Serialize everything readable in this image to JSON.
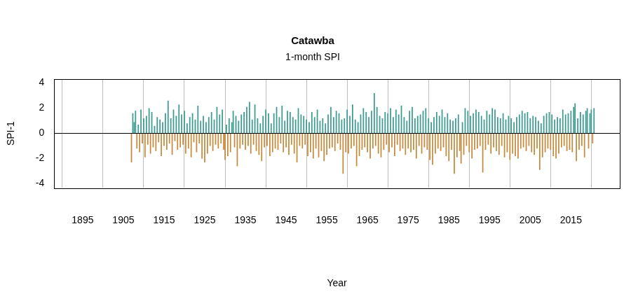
{
  "chart_data": {
    "type": "bar",
    "title": "Catawba",
    "subtitle": "1-month SPI",
    "x_label": "Year",
    "y_label": "SPI-1",
    "x": [
      1907,
      1907.33,
      1907.67,
      1908,
      1908.33,
      1908.67,
      1909,
      1909.33,
      1909.67,
      1910,
      1910.33,
      1910.67,
      1911,
      1911.33,
      1911.67,
      1912,
      1912.33,
      1912.67,
      1913,
      1913.33,
      1913.67,
      1914,
      1914.33,
      1914.67,
      1915,
      1915.33,
      1915.67,
      1916,
      1916.33,
      1916.67,
      1917,
      1917.33,
      1917.67,
      1918,
      1918.33,
      1918.67,
      1919,
      1919.33,
      1919.67,
      1920,
      1920.33,
      1920.67,
      1921,
      1921.33,
      1921.67,
      1922,
      1922.33,
      1922.67,
      1923,
      1923.33,
      1923.67,
      1924,
      1924.33,
      1924.67,
      1925,
      1925.33,
      1925.67,
      1926,
      1926.33,
      1926.67,
      1927,
      1927.33,
      1927.67,
      1928,
      1928.33,
      1928.67,
      1929,
      1929.33,
      1929.67,
      1930,
      1930.33,
      1930.67,
      1931,
      1931.33,
      1931.67,
      1932,
      1932.33,
      1932.67,
      1933,
      1933.33,
      1933.67,
      1934,
      1934.33,
      1934.67,
      1935,
      1935.33,
      1935.67,
      1936,
      1936.33,
      1936.67,
      1937,
      1937.33,
      1937.67,
      1938,
      1938.33,
      1938.67,
      1939,
      1939.33,
      1939.67,
      1940,
      1940.33,
      1940.67,
      1941,
      1941.33,
      1941.67,
      1942,
      1942.33,
      1942.67,
      1943,
      1943.33,
      1943.67,
      1944,
      1944.33,
      1944.67,
      1945,
      1945.33,
      1945.67,
      1946,
      1946.33,
      1946.67,
      1947,
      1947.33,
      1947.67,
      1948,
      1948.33,
      1948.67,
      1949,
      1949.33,
      1949.67,
      1950,
      1950.33,
      1950.67,
      1951,
      1951.33,
      1951.67,
      1952,
      1952.33,
      1952.67,
      1953,
      1953.33,
      1953.67,
      1954,
      1954.33,
      1954.67,
      1955,
      1955.33,
      1955.67,
      1956,
      1956.33,
      1956.67,
      1957,
      1957.33,
      1957.67,
      1958,
      1958.33,
      1958.67,
      1959,
      1959.33,
      1959.67,
      1960,
      1960.33,
      1960.67,
      1961,
      1961.33,
      1961.67,
      1962,
      1962.33,
      1962.67,
      1963,
      1963.33,
      1963.67,
      1964,
      1964.33,
      1964.67,
      1965,
      1965.33,
      1965.67,
      1966,
      1966.33,
      1966.67,
      1967,
      1967.33,
      1967.67,
      1968,
      1968.33,
      1968.67,
      1969,
      1969.33,
      1969.67,
      1970,
      1970.33,
      1970.67,
      1971,
      1971.33,
      1971.67,
      1972,
      1972.33,
      1972.67,
      1973,
      1973.33,
      1973.67,
      1974,
      1974.33,
      1974.67,
      1975,
      1975.33,
      1975.67,
      1976,
      1976.33,
      1976.67,
      1977,
      1977.33,
      1977.67,
      1978,
      1978.33,
      1978.67,
      1979,
      1979.33,
      1979.67,
      1980,
      1980.33,
      1980.67,
      1981,
      1981.33,
      1981.67,
      1982,
      1982.33,
      1982.67,
      1983,
      1983.33,
      1983.67,
      1984,
      1984.33,
      1984.67,
      1985,
      1985.33,
      1985.67,
      1986,
      1986.33,
      1986.67,
      1987,
      1987.33,
      1987.67,
      1988,
      1988.33,
      1988.67,
      1989,
      1989.33,
      1989.67,
      1990,
      1990.33,
      1990.67,
      1991,
      1991.33,
      1991.67,
      1992,
      1992.33,
      1992.67,
      1993,
      1993.33,
      1993.67,
      1994,
      1994.33,
      1994.67,
      1995,
      1995.33,
      1995.67,
      1996,
      1996.33,
      1996.67,
      1997,
      1997.33,
      1997.67,
      1998,
      1998.33,
      1998.67,
      1999,
      1999.33,
      1999.67,
      2000,
      2000.33,
      2000.67,
      2001,
      2001.33,
      2001.67,
      2002,
      2002.33,
      2002.67,
      2003,
      2003.33,
      2003.67,
      2004,
      2004.33,
      2004.67,
      2005,
      2005.33,
      2005.67,
      2006,
      2006.33,
      2006.67,
      2007,
      2007.33,
      2007.67,
      2008,
      2008.33,
      2008.67,
      2009,
      2009.33,
      2009.67,
      2010,
      2010.33,
      2010.67,
      2011,
      2011.33,
      2011.67,
      2012,
      2012.33,
      2012.67,
      2013,
      2013.33,
      2013.67,
      2014,
      2014.33,
      2014.67,
      2015,
      2015.33,
      2015.67,
      2016,
      2016.33,
      2016.67,
      2017,
      2017.33,
      2017.67,
      2018,
      2018.33,
      2018.67,
      2019,
      2019.33,
      2019.67,
      2020,
      2020.33,
      2020.67
    ],
    "series": [
      {
        "color": "#3a9a8f",
        "values": [
          null,
          1.6,
          0.9,
          1.8,
          null,
          0.7,
          null,
          1.9,
          null,
          1.2,
          null,
          1.4,
          null,
          2.0,
          null,
          1.7,
          null,
          0.6,
          null,
          1.3,
          null,
          1.1,
          null,
          0.9,
          null,
          1.6,
          null,
          2.6,
          null,
          1.2,
          null,
          1.9,
          null,
          1.4,
          null,
          2.3,
          null,
          1.5,
          null,
          1.8,
          null,
          0.8,
          null,
          1.3,
          null,
          1.6,
          null,
          1.1,
          null,
          2.2,
          null,
          1.0,
          null,
          1.4,
          null,
          0.9,
          null,
          1.3,
          null,
          1.7,
          null,
          1.1,
          null,
          2.1,
          null,
          1.5,
          null,
          1.9,
          null,
          null,
          0.7,
          null,
          1.2,
          null,
          0.9,
          1.8,
          null,
          1.4,
          null,
          1.0,
          null,
          1.5,
          null,
          1.7,
          null,
          2.1,
          null,
          2.5,
          null,
          1.1,
          null,
          2.3,
          null,
          1.2,
          null,
          0.8,
          null,
          1.4,
          null,
          1.9,
          null,
          1.6,
          null,
          0.8,
          null,
          1.6,
          null,
          2.1,
          null,
          1.3,
          null,
          2.2,
          null,
          1.0,
          null,
          1.8,
          null,
          1.7,
          null,
          1.3,
          null,
          1.1,
          null,
          2.0,
          null,
          1.5,
          null,
          1.4,
          null,
          1.1,
          null,
          0.9,
          null,
          1.7,
          null,
          1.3,
          null,
          1.9,
          null,
          1.0,
          null,
          1.2,
          null,
          0.8,
          null,
          1.5,
          null,
          2.1,
          null,
          1.3,
          null,
          1.8,
          null,
          1.6,
          null,
          1.1,
          null,
          1.2,
          null,
          1.9,
          null,
          1.4,
          null,
          2.3,
          null,
          1.1,
          null,
          0.9,
          null,
          1.5,
          null,
          2.0,
          null,
          1.7,
          null,
          1.3,
          null,
          1.8,
          null,
          3.2,
          null,
          2.1,
          null,
          1.4,
          null,
          1.2,
          null,
          1.7,
          null,
          1.6,
          null,
          2.0,
          null,
          1.3,
          null,
          1.9,
          null,
          1.5,
          null,
          2.2,
          null,
          1.3,
          null,
          1.0,
          null,
          1.8,
          null,
          2.1,
          null,
          1.2,
          null,
          1.4,
          null,
          1.5,
          null,
          1.8,
          null,
          2.0,
          null,
          1.2,
          null,
          0.9,
          null,
          1.3,
          null,
          1.7,
          null,
          1.4,
          null,
          1.9,
          null,
          1.3,
          null,
          1.6,
          null,
          1.1,
          null,
          1.0,
          null,
          1.2,
          null,
          1.5,
          null,
          null,
          0.9,
          null,
          2.0,
          null,
          1.8,
          null,
          1.4,
          null,
          1.6,
          null,
          1.9,
          null,
          1.7,
          null,
          1.4,
          null,
          1.1,
          null,
          1.8,
          null,
          1.5,
          null,
          2.0,
          null,
          1.9,
          null,
          1.3,
          null,
          1.2,
          null,
          1.6,
          null,
          1.1,
          null,
          1.4,
          null,
          1.2,
          null,
          0.9,
          null,
          1.3,
          null,
          1.5,
          null,
          1.8,
          null,
          1.6,
          null,
          1.7,
          null,
          1.2,
          null,
          1.4,
          null,
          1.3,
          null,
          1.0,
          null,
          0.8,
          null,
          1.4,
          null,
          1.6,
          null,
          1.7,
          null,
          1.5,
          null,
          1.1,
          null,
          1.3,
          null,
          1.2,
          null,
          1.9,
          null,
          1.5,
          null,
          1.6,
          null,
          1.8,
          null,
          2.1,
          2.4,
          null,
          1.2,
          null,
          1.7,
          null,
          1.5,
          null,
          1.8,
          2.0,
          null,
          1.6,
          1.9,
          null,
          2.0
        ]
      },
      {
        "color": "#c4893a",
        "values": [
          -2.3,
          null,
          null,
          null,
          -1.2,
          null,
          -1.5,
          null,
          -0.8,
          null,
          -1.9,
          null,
          -0.9,
          null,
          -1.6,
          null,
          -1.1,
          null,
          -1.4,
          null,
          -0.7,
          null,
          -1.8,
          null,
          -1.0,
          null,
          -1.3,
          null,
          -0.8,
          null,
          -1.7,
          null,
          -0.6,
          null,
          -1.3,
          null,
          -1.1,
          null,
          -0.9,
          null,
          -1.6,
          null,
          -1.2,
          null,
          -1.9,
          null,
          -0.7,
          null,
          -1.5,
          null,
          -0.8,
          null,
          -2.0,
          null,
          -2.3,
          null,
          -1.6,
          null,
          -1.0,
          null,
          -1.4,
          null,
          -0.9,
          null,
          -1.2,
          null,
          -0.8,
          null,
          -1.3,
          -2.1,
          null,
          -1.8,
          null,
          -1.5,
          null,
          null,
          -1.1,
          null,
          -2.6,
          null,
          -1.2,
          null,
          -0.9,
          null,
          -1.3,
          null,
          -1.0,
          null,
          -1.6,
          null,
          -0.9,
          null,
          -1.4,
          null,
          -1.7,
          null,
          -2.2,
          null,
          -1.1,
          null,
          -1.0,
          null,
          -1.8,
          null,
          -1.5,
          null,
          -1.2,
          null,
          -1.3,
          null,
          -0.8,
          null,
          -1.5,
          null,
          -1.1,
          null,
          -1.7,
          null,
          -0.9,
          null,
          -1.6,
          null,
          -2.3,
          null,
          -1.0,
          null,
          -1.2,
          null,
          -0.9,
          null,
          -1.8,
          null,
          -1.5,
          null,
          -2.0,
          null,
          -1.2,
          null,
          -1.9,
          null,
          -1.4,
          null,
          -2.2,
          null,
          -1.7,
          null,
          -1.2,
          null,
          -1.1,
          null,
          -1.4,
          null,
          -0.8,
          null,
          -1.3,
          null,
          -3.2,
          null,
          -1.5,
          null,
          -1.6,
          null,
          -1.2,
          null,
          -1.0,
          null,
          -2.6,
          null,
          -1.8,
          null,
          -1.3,
          null,
          -1.1,
          null,
          -1.5,
          null,
          -2.0,
          null,
          -1.2,
          null,
          -1.0,
          null,
          -1.6,
          null,
          -1.9,
          null,
          -1.3,
          null,
          -0.9,
          null,
          -1.5,
          null,
          -1.1,
          null,
          -1.8,
          null,
          -0.9,
          null,
          -1.4,
          null,
          -1.2,
          null,
          -1.7,
          null,
          -1.2,
          null,
          -1.5,
          null,
          -1.3,
          null,
          -2.0,
          null,
          -1.0,
          null,
          -1.6,
          null,
          -1.1,
          null,
          -1.3,
          null,
          -2.1,
          null,
          -2.5,
          null,
          -1.6,
          null,
          -1.2,
          null,
          -1.4,
          null,
          -1.1,
          null,
          -1.8,
          null,
          -2.2,
          null,
          -1.3,
          null,
          -3.2,
          null,
          -1.9,
          null,
          -1.4,
          -2.4,
          null,
          -1.7,
          null,
          -1.0,
          null,
          -1.5,
          null,
          -2.0,
          null,
          -1.3,
          null,
          -1.2,
          null,
          -1.0,
          null,
          -3.1,
          null,
          -1.3,
          null,
          -0.9,
          null,
          -1.6,
          null,
          -1.1,
          null,
          -1.4,
          null,
          -1.7,
          null,
          -1.0,
          null,
          -1.9,
          null,
          -1.5,
          null,
          -2.1,
          null,
          -1.6,
          null,
          -1.8,
          null,
          -2.0,
          null,
          -1.2,
          null,
          -1.1,
          null,
          -1.4,
          null,
          -1.0,
          null,
          -1.5,
          null,
          -1.7,
          null,
          -1.2,
          null,
          -2.9,
          null,
          -1.9,
          null,
          -1.5,
          null,
          -1.2,
          null,
          -1.3,
          null,
          -1.8,
          null,
          -2.0,
          null,
          -1.6,
          null,
          -1.1,
          null,
          -1.0,
          null,
          -1.4,
          null,
          -1.3,
          null,
          -1.5,
          null,
          null,
          -2.2,
          null,
          -1.3,
          null,
          -1.0,
          null,
          -1.9,
          null,
          null,
          -1.2,
          null,
          null,
          -0.8,
          null
        ]
      }
    ],
    "xlim": [
      1888,
      2027
    ],
    "xticks": [
      1895,
      1905,
      1915,
      1925,
      1935,
      1945,
      1955,
      1965,
      1975,
      1985,
      1995,
      2005,
      2015
    ],
    "ylim": [
      -4.32,
      4.32
    ],
    "yticks": [
      -4,
      -2,
      0,
      2,
      4
    ],
    "grid": true
  }
}
